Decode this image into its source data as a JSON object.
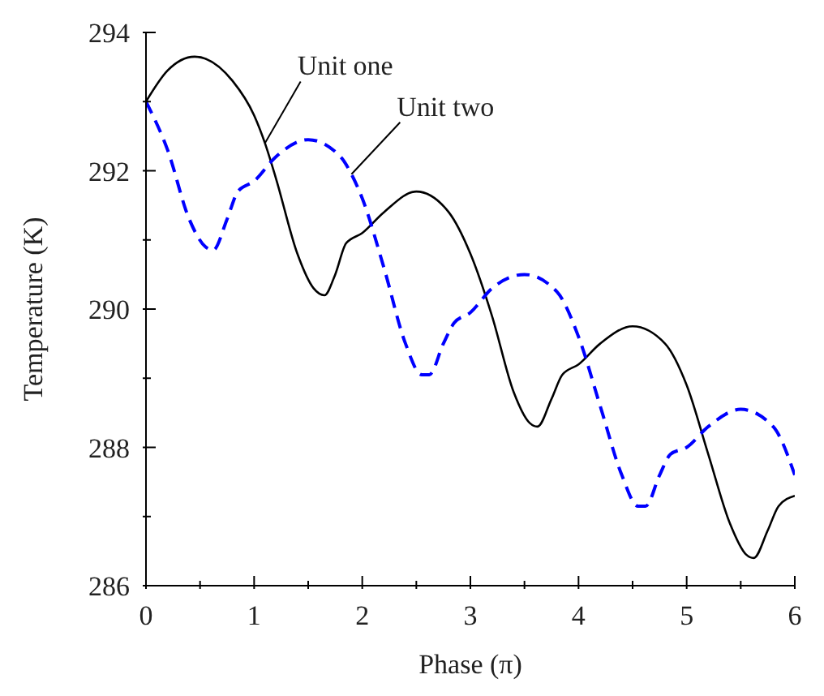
{
  "chart_data": {
    "type": "line",
    "xlabel": "Phase (π)",
    "ylabel": "Temperature (K)",
    "xlim": [
      0,
      6
    ],
    "ylim": [
      286,
      294
    ],
    "xticks": [
      0,
      {
        "value": 0.5,
        "label": null
      },
      1,
      {
        "value": 1.5,
        "label": null
      },
      2,
      {
        "value": 2.5,
        "label": null
      },
      3,
      {
        "value": 3.5,
        "label": null
      },
      4,
      {
        "value": 4.5,
        "label": null
      },
      5,
      {
        "value": 5.5,
        "label": null
      },
      6
    ],
    "yticks": [
      286,
      {
        "value": 287,
        "label": null
      },
      288,
      {
        "value": 289,
        "label": null
      },
      290,
      {
        "value": 291,
        "label": null
      },
      292,
      {
        "value": 293,
        "label": null
      },
      294
    ],
    "marker": "none",
    "grid": false,
    "series": [
      {
        "name": "Unit one",
        "color": "#000000",
        "line_style": "solid",
        "x": [
          0,
          0.2,
          0.45,
          0.8,
          1.0,
          1.1,
          1.2,
          1.4,
          1.55,
          1.65,
          1.75,
          1.85,
          2.0,
          2.2,
          2.5,
          2.8,
          3.0,
          3.2,
          3.4,
          3.55,
          3.62,
          3.75,
          3.85,
          4.0,
          4.2,
          4.5,
          4.8,
          5.0,
          5.2,
          5.4,
          5.55,
          5.62,
          5.75,
          5.85,
          6.0
        ],
        "values": [
          293.0,
          293.45,
          293.65,
          293.3,
          292.8,
          292.4,
          291.9,
          290.8,
          290.3,
          290.2,
          290.5,
          290.95,
          291.1,
          291.4,
          291.7,
          291.4,
          290.8,
          289.9,
          288.8,
          288.35,
          288.3,
          288.7,
          289.05,
          289.2,
          289.5,
          289.75,
          289.5,
          288.9,
          287.9,
          286.9,
          286.45,
          286.4,
          286.8,
          287.15,
          287.3
        ]
      },
      {
        "name": "Unit two",
        "color": "#0000ff",
        "line_style": "dashed",
        "x": [
          0,
          0.2,
          0.4,
          0.55,
          0.62,
          0.75,
          0.85,
          1.0,
          1.2,
          1.5,
          1.8,
          1.9,
          2.0,
          2.2,
          2.4,
          2.55,
          2.62,
          2.75,
          2.85,
          3.0,
          3.2,
          3.5,
          3.8,
          4.0,
          4.2,
          4.4,
          4.55,
          4.62,
          4.75,
          4.85,
          5.0,
          5.2,
          5.5,
          5.8,
          6.0
        ],
        "values": [
          293.0,
          292.3,
          291.3,
          290.9,
          290.85,
          291.3,
          291.7,
          291.85,
          292.2,
          292.45,
          292.2,
          291.95,
          291.6,
          290.6,
          289.5,
          289.05,
          289.05,
          289.5,
          289.8,
          289.95,
          290.3,
          290.5,
          290.25,
          289.6,
          288.6,
          287.6,
          287.15,
          287.15,
          287.6,
          287.9,
          288.0,
          288.3,
          288.55,
          288.3,
          287.6
        ]
      }
    ]
  }
}
